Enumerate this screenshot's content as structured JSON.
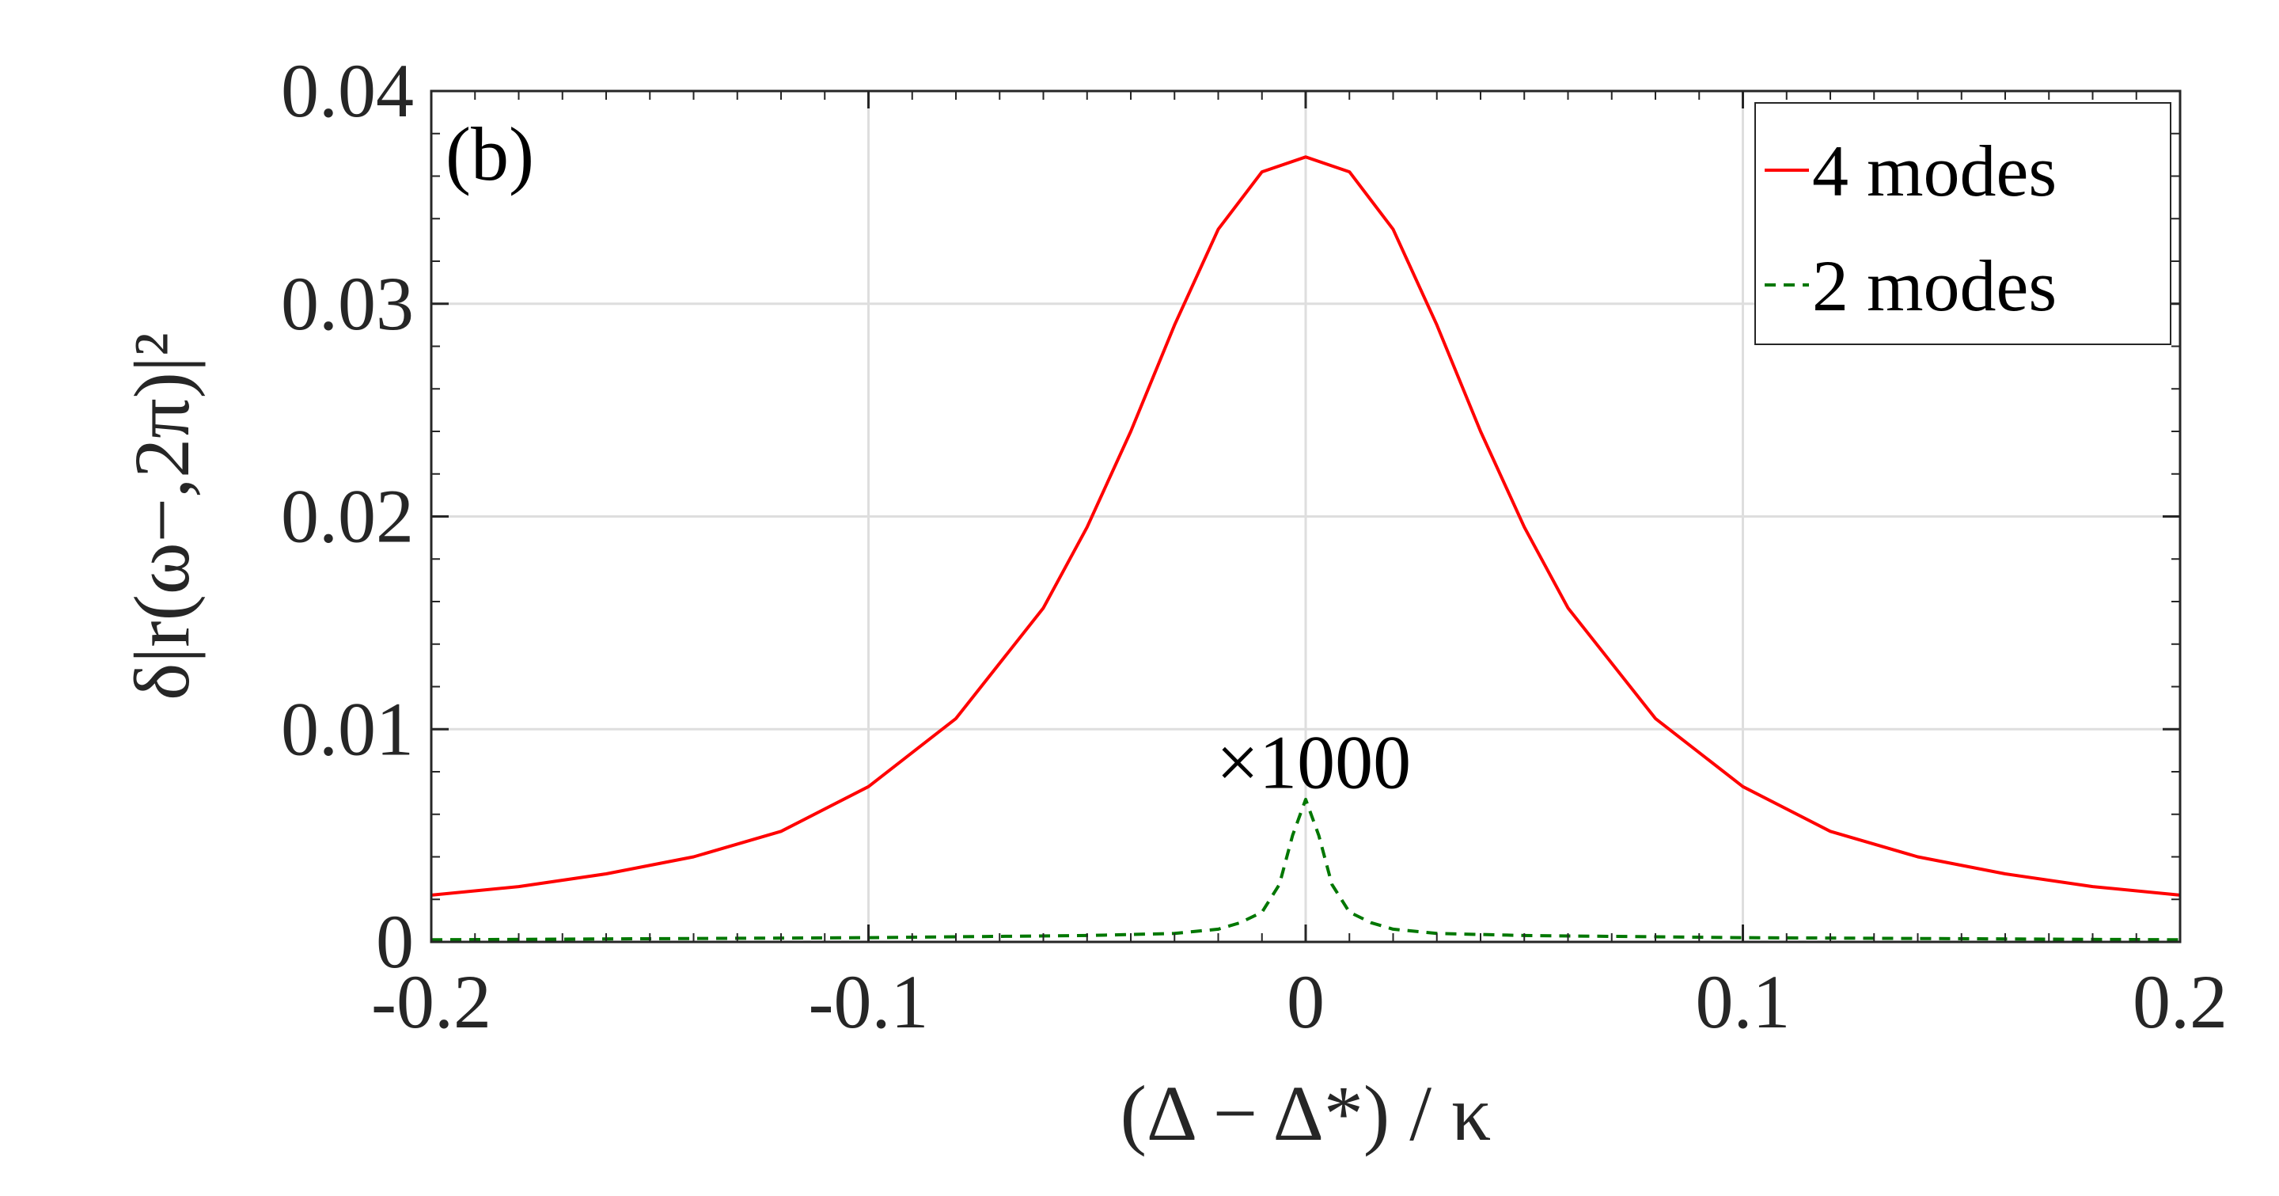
{
  "chart_data": {
    "type": "line",
    "panel_label": "(b)",
    "xlabel": "(Δ − Δ*) / κ",
    "ylabel": "δ|r(ω−,2π)|²",
    "xlim": [
      -0.2,
      0.2
    ],
    "ylim": [
      0,
      0.04
    ],
    "x_ticks": [
      -0.2,
      -0.1,
      0,
      0.1,
      0.2
    ],
    "x_tick_labels": [
      "-0.2",
      "-0.1",
      "0",
      "0.1",
      "0.2"
    ],
    "y_ticks": [
      0,
      0.01,
      0.02,
      0.03,
      0.04
    ],
    "y_tick_labels": [
      "0",
      "0.01",
      "0.02",
      "0.03",
      "0.04"
    ],
    "grid": true,
    "legend_position": "top-right",
    "annotation": {
      "text": "×1000",
      "x": 0,
      "y": 0.0085
    },
    "series": [
      {
        "name": "4 modes",
        "color": "#ff0000",
        "style": "solid",
        "x": [
          -0.2,
          -0.18,
          -0.16,
          -0.14,
          -0.12,
          -0.1,
          -0.08,
          -0.06,
          -0.05,
          -0.04,
          -0.03,
          -0.02,
          -0.01,
          0,
          0.01,
          0.02,
          0.03,
          0.04,
          0.05,
          0.06,
          0.08,
          0.1,
          0.12,
          0.14,
          0.16,
          0.18,
          0.2
        ],
        "y": [
          0.0022,
          0.0026,
          0.0032,
          0.004,
          0.0052,
          0.0073,
          0.0105,
          0.0157,
          0.0195,
          0.024,
          0.029,
          0.0335,
          0.0362,
          0.0369,
          0.0362,
          0.0335,
          0.029,
          0.024,
          0.0195,
          0.0157,
          0.0105,
          0.0073,
          0.0052,
          0.004,
          0.0032,
          0.0026,
          0.0022
        ]
      },
      {
        "name": "2 modes",
        "color": "#007700",
        "style": "dashed",
        "x": [
          -0.2,
          -0.1,
          -0.05,
          -0.03,
          -0.02,
          -0.015,
          -0.01,
          -0.006,
          -0.003,
          0,
          0.003,
          0.006,
          0.01,
          0.015,
          0.02,
          0.03,
          0.05,
          0.1,
          0.2
        ],
        "y": [
          0.0001,
          0.0002,
          0.0003,
          0.0004,
          0.0006,
          0.0009,
          0.0014,
          0.0027,
          0.005,
          0.0067,
          0.005,
          0.0027,
          0.0014,
          0.0009,
          0.0006,
          0.0004,
          0.0003,
          0.0002,
          0.0001
        ]
      }
    ]
  }
}
